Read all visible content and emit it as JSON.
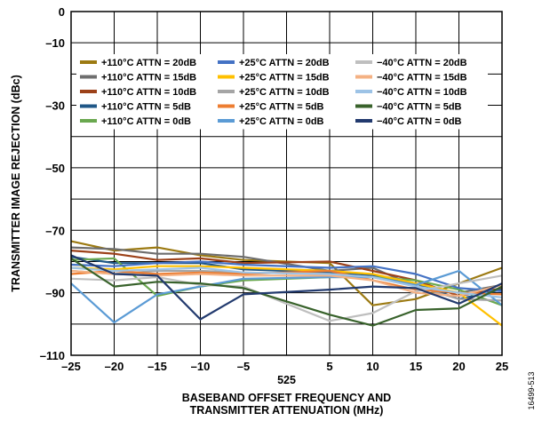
{
  "figure_id": "16499-513",
  "chart_data": {
    "type": "line",
    "xlabel_lines": [
      "BASEBAND OFFSET FREQUENCY AND",
      "TRANSMITTER ATTENUATION (MHz)"
    ],
    "ylabel": "TRANSMITTER IMAGE REJECTION (dBc)",
    "x_center_label": "525",
    "xlim": [
      -25,
      25
    ],
    "ylim": [
      -110,
      0
    ],
    "xticks": [
      -25,
      -20,
      -15,
      -10,
      -5,
      5,
      10,
      15,
      20,
      25
    ],
    "xtick_labels": [
      "–25",
      "–20",
      "–15",
      "–10",
      "–5",
      "5",
      "10",
      "15",
      "20",
      "25"
    ],
    "yticks": [
      0,
      -10,
      -30,
      -50,
      -70,
      -90,
      -110
    ],
    "ytick_labels": [
      "0",
      "–10",
      "–30",
      "–50",
      "–70",
      "–90",
      "–110"
    ],
    "grid": true,
    "legend_position": "top",
    "x": [
      -25,
      -20,
      -15,
      -10,
      -5,
      5,
      10,
      15,
      20,
      25
    ],
    "series": [
      {
        "name": "+110°C ATTN = 20dB",
        "color": "#9c7a12",
        "values": [
          -73.5,
          -76.5,
          -75.5,
          -78,
          -79.5,
          -80.5,
          -94,
          -92,
          -87,
          -82
        ]
      },
      {
        "name": "+110°C ATTN = 15dB",
        "color": "#6e6e6e",
        "values": [
          -75.5,
          -76,
          -77.5,
          -77.5,
          -78.5,
          -83,
          -82,
          -88,
          -90,
          -87.5
        ]
      },
      {
        "name": "+110°C ATTN = 10dB",
        "color": "#9c4119",
        "values": [
          -76.5,
          -77.5,
          -79.5,
          -79,
          -80.5,
          -80,
          -83,
          -86,
          -91,
          -88.5
        ]
      },
      {
        "name": "+110°C ATTN = 5dB",
        "color": "#1f5787",
        "values": [
          -78.5,
          -80.5,
          -80.5,
          -80.5,
          -82.5,
          -83.5,
          -84.5,
          -87,
          -92,
          -89
        ]
      },
      {
        "name": "+110°C ATTN = 0dB",
        "color": "#6aa84f",
        "values": [
          -79.5,
          -79,
          -91,
          -88,
          -86,
          -85,
          -85,
          -86,
          -89,
          -94
        ]
      },
      {
        "name": "+25°C ATTN = 20dB",
        "color": "#4472c4",
        "values": [
          -81,
          -81.5,
          -80.5,
          -80,
          -81,
          -82,
          -81.5,
          -84,
          -88.5,
          -89.5
        ]
      },
      {
        "name": "+25°C ATTN = 15dB",
        "color": "#ffc000",
        "values": [
          -82,
          -82.5,
          -81.5,
          -81.5,
          -82,
          -83,
          -84,
          -87,
          -90,
          -100.5
        ]
      },
      {
        "name": "+25°C ATTN = 10dB",
        "color": "#a5a5a5",
        "values": [
          -83,
          -84,
          -83,
          -83,
          -83.5,
          -84,
          -85,
          -88,
          -92,
          -92.5
        ]
      },
      {
        "name": "+25°C ATTN = 5dB",
        "color": "#ed7d31",
        "values": [
          -84,
          -83,
          -84,
          -83.5,
          -84,
          -83,
          -86,
          -89,
          -90,
          -90.5
        ]
      },
      {
        "name": "+25°C ATTN = 0dB",
        "color": "#5b9bd5",
        "values": [
          -87,
          -99.5,
          -90.5,
          -88,
          -85.5,
          -85,
          -85,
          -87.5,
          -83,
          -94
        ]
      },
      {
        "name": "−40°C ATTN = 20dB",
        "color": "#bfbfbf",
        "values": [
          -85.5,
          -86,
          -85,
          -87.5,
          -88,
          -99,
          -96.5,
          -89.5,
          -87,
          -84.5
        ]
      },
      {
        "name": "−40°C ATTN = 15dB",
        "color": "#f4b183",
        "values": [
          -83,
          -84,
          -84.5,
          -84,
          -84.5,
          -84.5,
          -86,
          -90,
          -91,
          -87.5
        ]
      },
      {
        "name": "−40°C ATTN = 10dB",
        "color": "#9dc3e6",
        "values": [
          -82,
          -83,
          -82.5,
          -82,
          -83.5,
          -84,
          -85,
          -88,
          -90,
          -91.5
        ]
      },
      {
        "name": "−40°C ATTN = 5dB",
        "color": "#38622b",
        "values": [
          -79,
          -88,
          -86.5,
          -87,
          -88.5,
          -97,
          -100.5,
          -95.5,
          -95,
          -88
        ]
      },
      {
        "name": "−40°C ATTN = 0dB",
        "color": "#223a6e",
        "values": [
          -78,
          -84,
          -84.5,
          -98.5,
          -90.5,
          -89,
          -88,
          -88.5,
          -93.5,
          -87
        ]
      }
    ]
  }
}
